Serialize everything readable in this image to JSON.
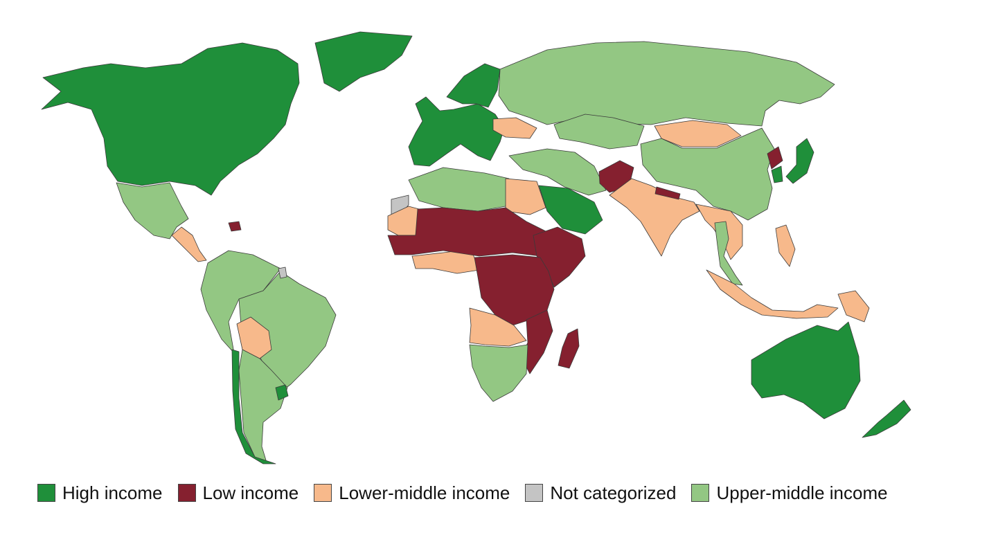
{
  "map": {
    "categories": {
      "high": "#1f8f3a",
      "low": "#85202f",
      "lower_middle": "#f7b98b",
      "not_categorized": "#c4c4c4",
      "upper_middle": "#93c783"
    },
    "regions": [
      {
        "name": "North America",
        "category": "high"
      },
      {
        "name": "Greenland",
        "category": "high"
      },
      {
        "name": "Western Europe",
        "category": "high"
      },
      {
        "name": "Scandinavia",
        "category": "high"
      },
      {
        "name": "Saudi Arabia",
        "category": "high"
      },
      {
        "name": "Japan",
        "category": "high"
      },
      {
        "name": "South Korea",
        "category": "high"
      },
      {
        "name": "Australia",
        "category": "high"
      },
      {
        "name": "New Zealand",
        "category": "high"
      },
      {
        "name": "Chile",
        "category": "high"
      },
      {
        "name": "Uruguay",
        "category": "high"
      },
      {
        "name": "Russia",
        "category": "upper_middle"
      },
      {
        "name": "China",
        "category": "upper_middle"
      },
      {
        "name": "Kazakhstan",
        "category": "upper_middle"
      },
      {
        "name": "Mexico",
        "category": "upper_middle"
      },
      {
        "name": "Brazil",
        "category": "upper_middle"
      },
      {
        "name": "South America (other)",
        "category": "upper_middle"
      },
      {
        "name": "Argentina",
        "category": "upper_middle"
      },
      {
        "name": "Algeria and Libya",
        "category": "upper_middle"
      },
      {
        "name": "Southern Africa",
        "category": "upper_middle"
      },
      {
        "name": "Turkey and Iran",
        "category": "upper_middle"
      },
      {
        "name": "Thailand and Malaysia",
        "category": "upper_middle"
      },
      {
        "name": "Mongolia",
        "category": "lower_middle"
      },
      {
        "name": "India",
        "category": "lower_middle"
      },
      {
        "name": "Egypt",
        "category": "lower_middle"
      },
      {
        "name": "Bolivia",
        "category": "lower_middle"
      },
      {
        "name": "Central America",
        "category": "lower_middle"
      },
      {
        "name": "Angola and Zambia",
        "category": "lower_middle"
      },
      {
        "name": "West Africa coast",
        "category": "lower_middle"
      },
      {
        "name": "Ukraine",
        "category": "lower_middle"
      },
      {
        "name": "Indonesia",
        "category": "lower_middle"
      },
      {
        "name": "Papua New Guinea",
        "category": "lower_middle"
      },
      {
        "name": "Philippines",
        "category": "lower_middle"
      },
      {
        "name": "Southeast Asia mainland",
        "category": "lower_middle"
      },
      {
        "name": "Sahel",
        "category": "low"
      },
      {
        "name": "Central and East Africa",
        "category": "low"
      },
      {
        "name": "Horn of Africa",
        "category": "low"
      },
      {
        "name": "Madagascar",
        "category": "low"
      },
      {
        "name": "Mozambique and Malawi",
        "category": "low"
      },
      {
        "name": "Afghanistan",
        "category": "low"
      },
      {
        "name": "Nepal",
        "category": "low"
      },
      {
        "name": "North Korea",
        "category": "low"
      },
      {
        "name": "Haiti",
        "category": "low"
      },
      {
        "name": "Western Sahara",
        "category": "not_categorized"
      },
      {
        "name": "French Guiana",
        "category": "not_categorized"
      }
    ]
  },
  "legend": [
    {
      "key": "high",
      "label": "High income"
    },
    {
      "key": "low",
      "label": "Low income"
    },
    {
      "key": "lower_middle",
      "label": "Lower-middle income"
    },
    {
      "key": "not_categorized",
      "label": "Not categorized"
    },
    {
      "key": "upper_middle",
      "label": "Upper-middle income"
    }
  ]
}
